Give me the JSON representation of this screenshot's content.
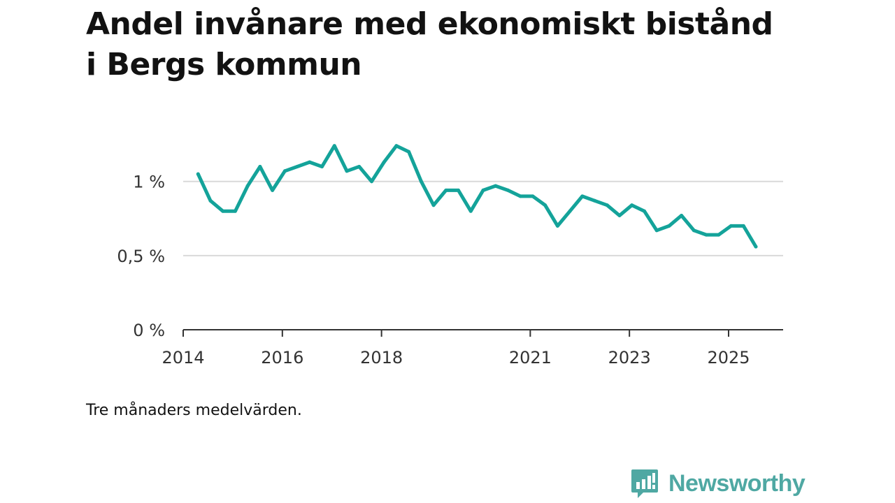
{
  "header": {
    "title": "Andel invånare med ekonomiskt bistånd i Bergs kommun"
  },
  "footer": {
    "note": "Tre månaders medelvärden.",
    "brand": "Newsworthy"
  },
  "colors": {
    "line": "#14a39a",
    "grid": "#d9d9d9",
    "axis": "#333333",
    "brand": "#4fa8a3"
  },
  "chart_data": {
    "type": "line",
    "title": "Andel invånare med ekonomiskt bistånd i Bergs kommun",
    "xlabel": "",
    "ylabel": "",
    "ylim": [
      0,
      1.3
    ],
    "xlim": [
      2014,
      2026.1
    ],
    "grid": true,
    "y_ticks": [
      {
        "value": 0,
        "label": "0 %"
      },
      {
        "value": 0.5,
        "label": "0,5 %"
      },
      {
        "value": 1,
        "label": "1 %"
      }
    ],
    "x_ticks": [
      {
        "value": 2014,
        "label": "2014"
      },
      {
        "value": 2016,
        "label": "2016"
      },
      {
        "value": 2018,
        "label": "2018"
      },
      {
        "value": 2021,
        "label": "2021"
      },
      {
        "value": 2023,
        "label": "2023"
      },
      {
        "value": 2025,
        "label": "2025"
      }
    ],
    "series": [
      {
        "name": "Andel invånare med ekonomiskt bistånd",
        "x": [
          2014.3,
          2014.55,
          2014.8,
          2015.05,
          2015.3,
          2015.55,
          2015.8,
          2016.05,
          2016.3,
          2016.55,
          2016.8,
          2017.05,
          2017.3,
          2017.55,
          2017.8,
          2018.05,
          2018.3,
          2018.55,
          2018.8,
          2019.05,
          2019.3,
          2019.55,
          2019.8,
          2020.05,
          2020.3,
          2020.55,
          2020.8,
          2021.05,
          2021.3,
          2021.55,
          2021.8,
          2022.05,
          2022.3,
          2022.55,
          2022.8,
          2023.05,
          2023.3,
          2023.55,
          2023.8,
          2024.05,
          2024.3,
          2024.55,
          2024.8,
          2025.05,
          2025.3,
          2025.55
        ],
        "values": [
          1.05,
          0.87,
          0.8,
          0.8,
          0.97,
          1.1,
          0.94,
          1.07,
          1.1,
          1.13,
          1.1,
          1.24,
          1.07,
          1.1,
          1.0,
          1.13,
          1.24,
          1.2,
          1.0,
          0.84,
          0.94,
          0.94,
          0.8,
          0.94,
          0.97,
          0.94,
          0.9,
          0.9,
          0.84,
          0.7,
          0.8,
          0.9,
          0.87,
          0.84,
          0.77,
          0.84,
          0.8,
          0.67,
          0.7,
          0.77,
          0.67,
          0.64,
          0.64,
          0.7,
          0.7,
          0.56
        ]
      }
    ]
  }
}
